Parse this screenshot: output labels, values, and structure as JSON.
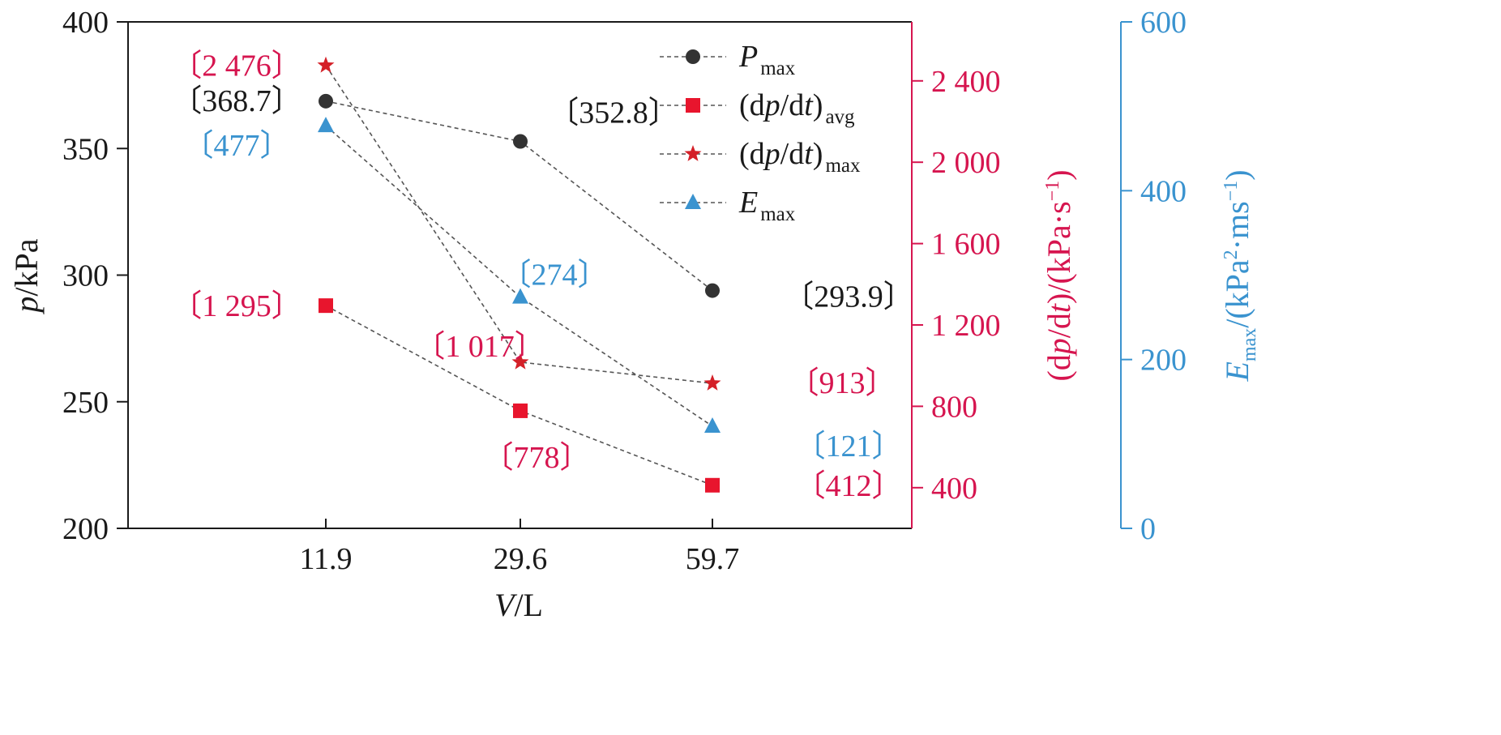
{
  "chart_data": {
    "type": "line",
    "categories": [
      "11.9",
      "29.6",
      "59.7"
    ],
    "xlabel": {
      "main": "V",
      "rest": "/L"
    },
    "axes": {
      "left": {
        "label": {
          "main": "p",
          "rest": "/kPa"
        },
        "range": [
          200,
          400
        ],
        "ticks": [
          200,
          250,
          300,
          350,
          400
        ],
        "tick_labels": [
          "200",
          "250",
          "300",
          "350",
          "400"
        ],
        "color": "#1a1a1a"
      },
      "right1": {
        "label": {
          "pre": "(d",
          "p": "p",
          "mid": "/d",
          "t": "t",
          "post": ")/(kPa·s",
          "sup": "−1",
          "end": ")"
        },
        "range": [
          200,
          2690
        ],
        "ticks": [
          400,
          800,
          1200,
          1600,
          2000,
          2400
        ],
        "tick_labels": [
          "400",
          "800",
          "1 200",
          "1 600",
          "2 000",
          "2 400"
        ],
        "color": "#d6154f"
      },
      "right2": {
        "label": {
          "main": "E",
          "sub": "max",
          "mid": "/(kPa",
          "sup1": "2",
          "dot": "·ms",
          "sup2": "−1",
          "end": ")"
        },
        "range": [
          0,
          600
        ],
        "ticks": [
          0,
          200,
          400,
          600
        ],
        "tick_labels": [
          "0",
          "200",
          "400",
          "600"
        ],
        "color": "#3a93cf"
      }
    },
    "series": [
      {
        "name": "P",
        "name_sub": "max",
        "axis": "left",
        "marker": "circle",
        "marker_color": "#333333",
        "values": [
          368.7,
          352.8,
          293.9
        ],
        "labels": [
          "〔368.7〕",
          "〔352.8〕",
          "〔293.9〕"
        ],
        "label_color": "#1a1a1a"
      },
      {
        "name": "(dp/dt)",
        "name_sub": "avg",
        "axis": "right1",
        "marker": "square",
        "marker_color": "#e8152d",
        "values": [
          1295,
          778,
          412
        ],
        "labels": [
          "〔1 295〕",
          "〔778〕",
          "〔412〕"
        ],
        "label_color": "#d6154f"
      },
      {
        "name": "(dp/dt)",
        "name_sub": "max",
        "axis": "right1",
        "marker": "star",
        "marker_color": "#d42028",
        "values": [
          2476,
          1017,
          913
        ],
        "labels": [
          "〔2 476〕",
          "〔1 017〕",
          "〔913〕"
        ],
        "label_color": "#d6154f"
      },
      {
        "name": "E",
        "name_sub": "max",
        "axis": "right2",
        "marker": "triangle",
        "marker_color": "#3a93cf",
        "values": [
          477,
          274,
          121
        ],
        "labels": [
          "〔477〕",
          "〔274〕",
          "〔121〕"
        ],
        "label_color": "#3a93cf"
      }
    ],
    "legend_position": "top-right",
    "grid": false,
    "line_style": "dashed"
  }
}
